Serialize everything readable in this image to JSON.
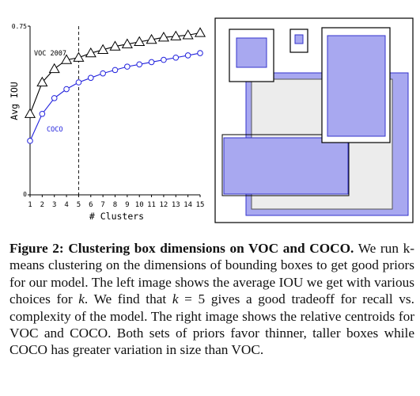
{
  "figure": {
    "chart_data": {
      "type": "line",
      "title": "",
      "xlabel": "# Clusters",
      "ylabel": "Avg IOU",
      "x": [
        1,
        2,
        3,
        4,
        5,
        6,
        7,
        8,
        9,
        10,
        11,
        12,
        13,
        14,
        15
      ],
      "xlim": [
        1,
        15
      ],
      "ylim": [
        0,
        0.75
      ],
      "y_tick_labels": [
        "0",
        "0.75"
      ],
      "x_tick_labels": [
        "1",
        "2",
        "3",
        "4",
        "5",
        "6",
        "7",
        "8",
        "9",
        "10",
        "11",
        "12",
        "13",
        "14",
        "15"
      ],
      "vline_x": 5,
      "series": [
        {
          "name": "VOC 2007",
          "marker": "triangle",
          "color": "#000000",
          "values": [
            0.36,
            0.5,
            0.56,
            0.6,
            0.61,
            0.63,
            0.645,
            0.66,
            0.67,
            0.68,
            0.69,
            0.7,
            0.705,
            0.71,
            0.72
          ]
        },
        {
          "name": "COCO",
          "marker": "circle",
          "color": "#2222dd",
          "values": [
            0.24,
            0.36,
            0.43,
            0.47,
            0.5,
            0.52,
            0.54,
            0.555,
            0.57,
            0.58,
            0.59,
            0.6,
            0.61,
            0.62,
            0.63
          ]
        }
      ]
    },
    "centroids": {
      "voc_color": "#000000",
      "coco_fill": "#a8a8f0",
      "coco_stroke": "#3333cc",
      "voc_fill": "#ececec"
    }
  },
  "caption": {
    "label": "Figure 2:",
    "title": "Clustering box dimensions on VOC and COCO.",
    "body_part1": "We run k-means clustering on the dimensions of bounding boxes to get good priors for our model. The left image shows the average IOU we get with various choices for",
    "k1": "k",
    "body_part2": ". We find that",
    "k2": "k",
    "eq": "= 5",
    "body_part3": "gives a good tradeoff for recall vs. complexity of the model. The right image shows the relative centroids for VOC and COCO. Both sets of priors favor thinner, taller boxes while COCO has greater variation in size than VOC."
  }
}
